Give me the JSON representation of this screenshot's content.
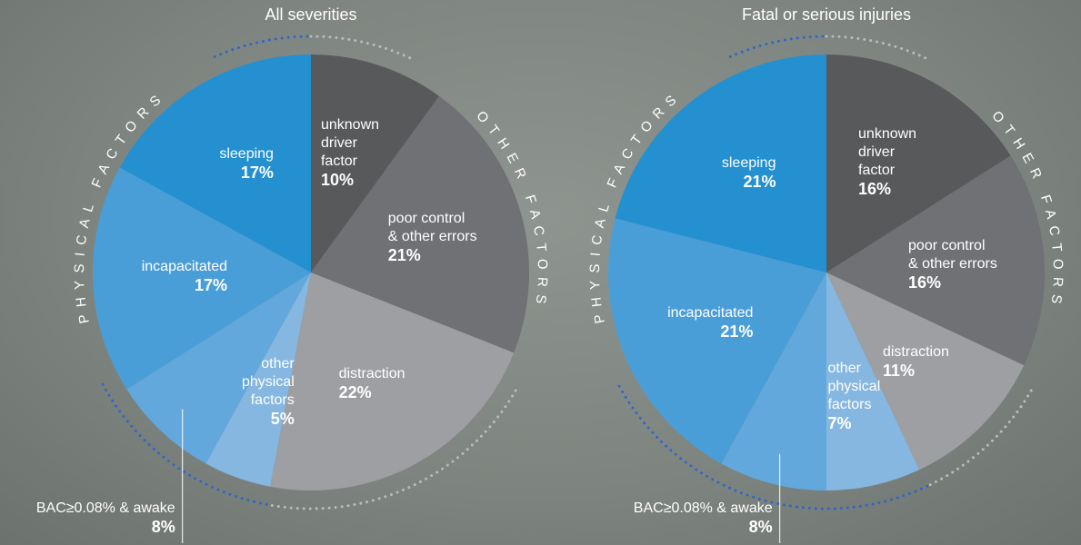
{
  "chart_data": [
    {
      "type": "pie",
      "title": "All severities",
      "categories": [
        "unknown\ndriver\nfactor",
        "poor control\n& other errors",
        "distraction",
        "other\nphysical\nfactors",
        "BAC≥0.08% & awake",
        "incapacitated",
        "sleeping"
      ],
      "values": [
        10,
        21,
        22,
        5,
        8,
        17,
        17
      ],
      "value_labels": [
        "10%",
        "21%",
        "22%",
        "5%",
        "8%",
        "17%",
        "17%"
      ],
      "colors": [
        "#58595b",
        "#6f7174",
        "#9d9fa2",
        "#86b7e0",
        "#62a8dc",
        "#4a9ed8",
        "#2490d0"
      ],
      "groups": [
        {
          "name": "OTHER FACTORS",
          "color": "#b8bcbf"
        },
        {
          "name": "PHYSICAL FACTORS",
          "color": "#2f66c8"
        }
      ]
    },
    {
      "type": "pie",
      "title": "Fatal or serious injuries",
      "categories": [
        "unknown\ndriver\nfactor",
        "poor control\n& other errors",
        "distraction",
        "other\nphysical\nfactors",
        "BAC≥0.08% & awake",
        "incapacitated",
        "sleeping"
      ],
      "values": [
        16,
        16,
        11,
        7,
        8,
        21,
        21
      ],
      "value_labels": [
        "16%",
        "16%",
        "11%",
        "7%",
        "8%",
        "21%",
        "21%"
      ],
      "colors": [
        "#58595b",
        "#6f7174",
        "#9d9fa2",
        "#86b7e0",
        "#62a8dc",
        "#4a9ed8",
        "#2490d0"
      ],
      "groups": [
        {
          "name": "OTHER FACTORS",
          "color": "#b8bcbf"
        },
        {
          "name": "PHYSICAL FACTORS",
          "color": "#2f66c8"
        }
      ]
    }
  ]
}
